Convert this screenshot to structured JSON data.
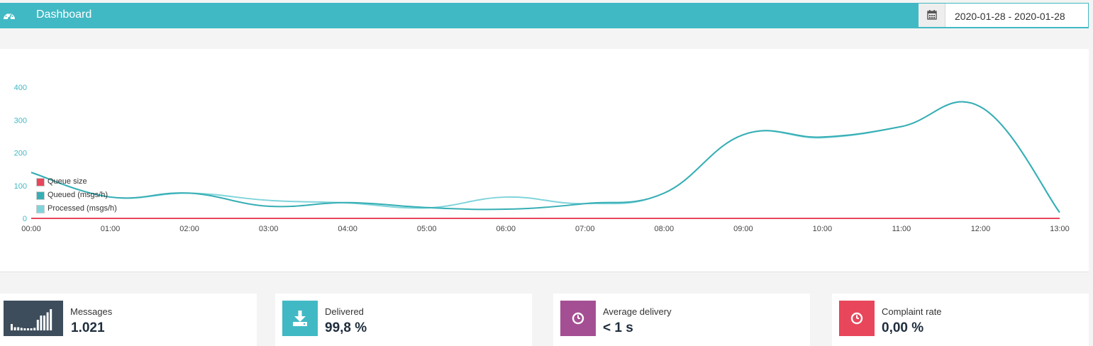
{
  "header": {
    "title": "Dashboard",
    "icon": "dashboard-icon",
    "date_range": "2020-01-28 - 2020-01-28",
    "calendar_icon": "calendar-icon",
    "bar_color": "#41b9c4"
  },
  "chart_data": {
    "type": "line",
    "x": [
      "00:00",
      "01:00",
      "02:00",
      "03:00",
      "04:00",
      "05:00",
      "06:00",
      "07:00",
      "08:00",
      "09:00",
      "10:00",
      "11:00",
      "12:00",
      "13:00"
    ],
    "series": [
      {
        "name": "Queue size",
        "color": "#e8465b",
        "values": [
          0,
          0,
          0,
          0,
          0,
          0,
          0,
          0,
          0,
          0,
          0,
          0,
          0,
          0
        ]
      },
      {
        "name": "Queued (msgs/h)",
        "color": "#36aeb4",
        "values": [
          140,
          65,
          77,
          37,
          48,
          33,
          28,
          45,
          77,
          255,
          248,
          280,
          340,
          18
        ]
      },
      {
        "name": "Processed (msgs/h)",
        "color": "#7fd4db",
        "values": [
          140,
          65,
          77,
          55,
          47,
          32,
          65,
          45,
          77,
          255,
          246,
          280,
          340,
          18
        ]
      }
    ],
    "y_ticks": [
      "0",
      "100",
      "200",
      "300",
      "400"
    ],
    "ylim": [
      0,
      400
    ],
    "legend_position": "left, overlapping plot",
    "grid": false
  },
  "stats": [
    {
      "label": "Messages",
      "value": "1.021",
      "icon": "bar-chart-icon",
      "color": "#3d4d5c",
      "bars": [
        0.3,
        0.15,
        0.15,
        0.12,
        0.1,
        0.1,
        0.1,
        0.12,
        0.5,
        0.7,
        0.7,
        0.85,
        1
      ]
    },
    {
      "label": "Delivered",
      "value": "99,8 %",
      "icon": "download-icon",
      "color": "#41b9c4"
    },
    {
      "label": "Average delivery",
      "value": "< 1 s",
      "icon": "clock-icon",
      "color": "#a44f93"
    },
    {
      "label": "Complaint rate",
      "value": "0,00 %",
      "icon": "clock-icon",
      "color": "#e8465b"
    }
  ]
}
